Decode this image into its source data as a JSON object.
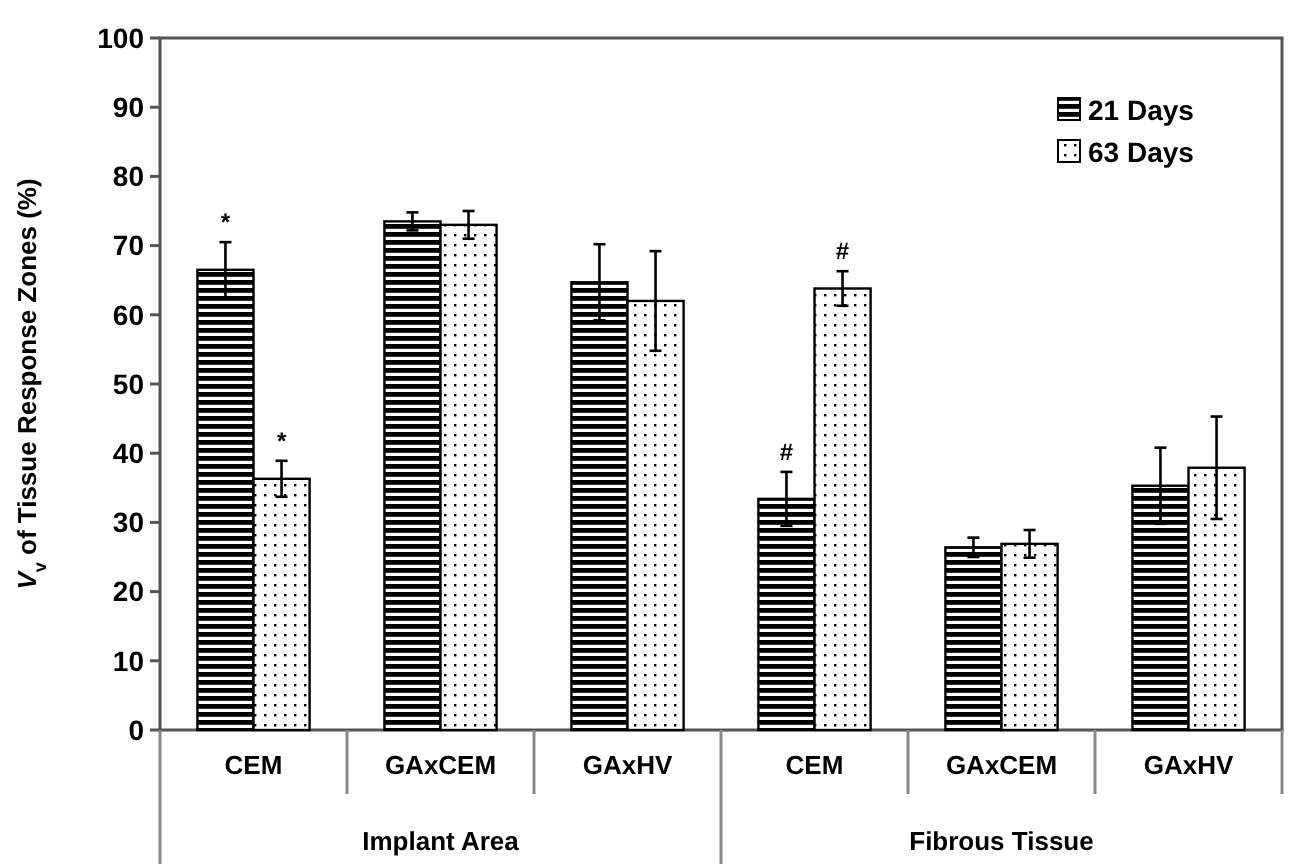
{
  "chart_data": {
    "type": "bar",
    "ylabel": "V$_{v}$ of Tissue Response Zones (%)",
    "categories": [
      "CEM",
      "GAxCEM",
      "GAxHV",
      "CEM",
      "GAxCEM",
      "GAxHV"
    ],
    "series": [
      {
        "name": "21 Days",
        "color": "#000000",
        "values": [
          66.5,
          73.5,
          64.7,
          33.4,
          26.4,
          35.3
        ],
        "errors": [
          4,
          1.3,
          5.5,
          3.9,
          1.4,
          5.5
        ],
        "value_labels": [
          "*",
          null,
          null,
          "#",
          null,
          null
        ]
      },
      {
        "name": "63 Days",
        "color": "#000000",
        "values": [
          36.3,
          73,
          62,
          63.8,
          26.9,
          37.9
        ],
        "errors": [
          2.6,
          2,
          7.2,
          2.5,
          2,
          7.4
        ],
        "value_labels": [
          "*",
          null,
          null,
          "#",
          null,
          null
        ]
      }
    ],
    "ylim": [
      0,
      100
    ],
    "yticks": [
      0,
      10,
      20,
      30,
      40,
      50,
      60,
      70,
      80,
      90,
      100
    ],
    "grid": false,
    "legend": "top right",
    "annotations": [
      "Implant Area",
      "Fibrous Tissue"
    ]
  }
}
